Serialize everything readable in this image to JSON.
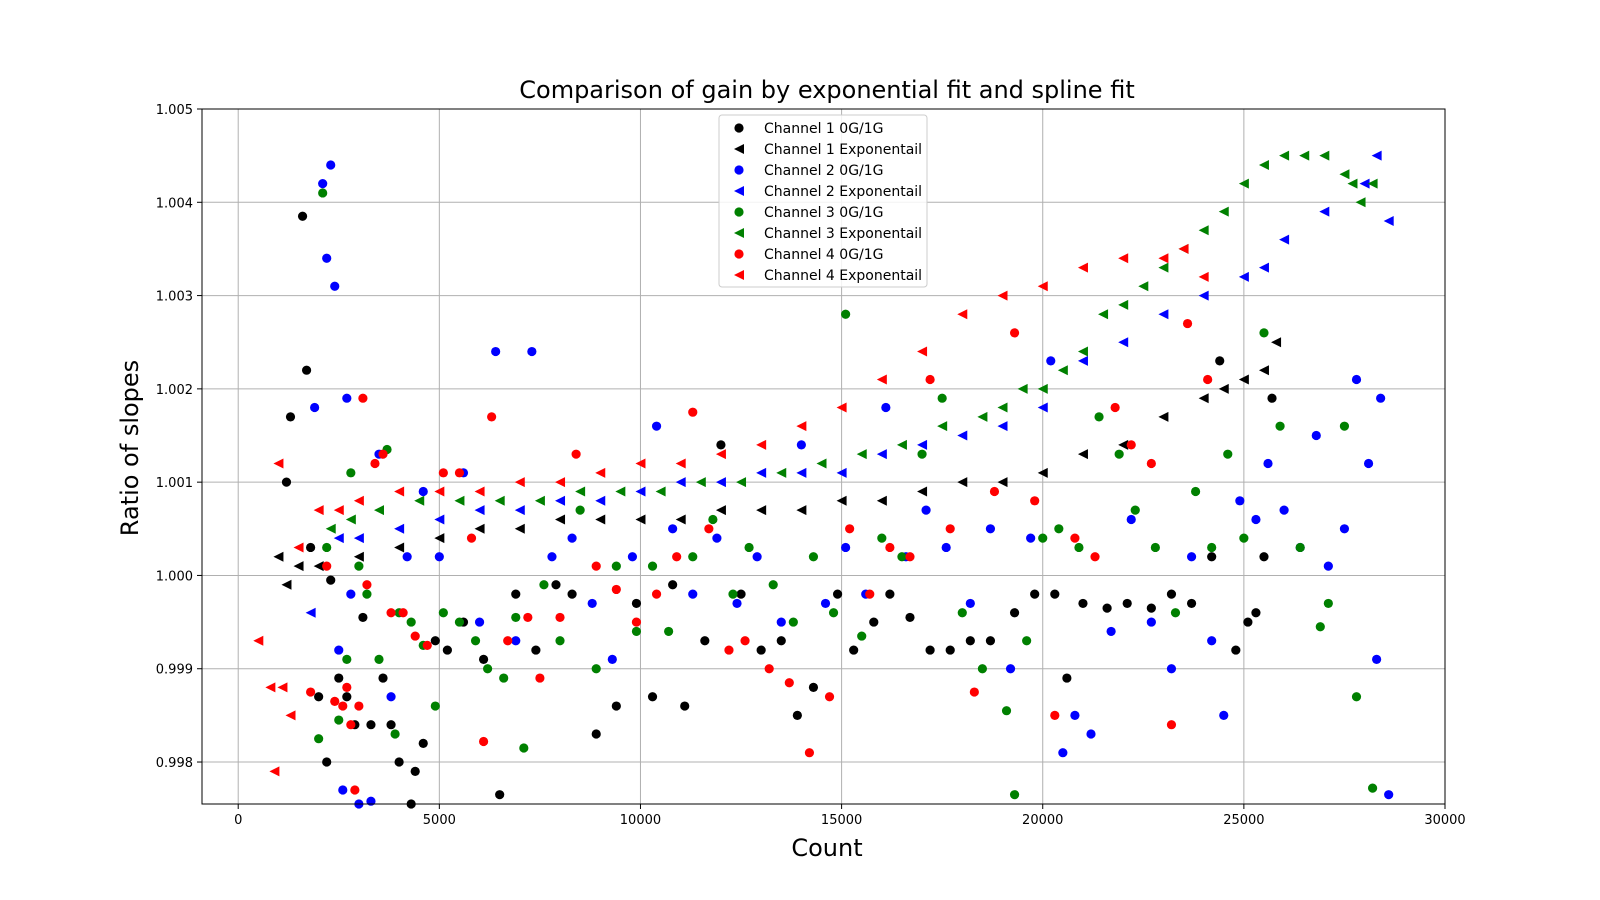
{
  "chart_data": {
    "type": "scatter",
    "title": "Comparison of gain by exponential fit and spline fit",
    "xlabel": "Count",
    "ylabel": "Ratio of slopes",
    "xlim": [
      -900,
      30000
    ],
    "ylim": [
      0.99755,
      1.005
    ],
    "xticks": [
      0,
      5000,
      10000,
      15000,
      20000,
      25000,
      30000
    ],
    "yticks": [
      0.998,
      0.999,
      1.0,
      1.001,
      1.002,
      1.003,
      1.004,
      1.005
    ],
    "ytick_labels": [
      "0.998",
      "0.999",
      "1.000",
      "1.001",
      "1.002",
      "1.003",
      "1.004",
      "1.005"
    ],
    "grid": true,
    "legend_position": "top-center",
    "series": [
      {
        "name": "Channel 1 0G/1G",
        "color": "#000000",
        "marker": "circle",
        "x": [
          1200,
          1300,
          1600,
          1700,
          1800,
          2000,
          2200,
          2300,
          2500,
          2700,
          2900,
          3100,
          3300,
          3600,
          3800,
          4000,
          4300,
          4400,
          4600,
          4900,
          5200,
          5600,
          6100,
          6500,
          6900,
          7400,
          7900,
          8300,
          8900,
          9400,
          9900,
          10300,
          10800,
          11100,
          11600,
          12000,
          12500,
          13000,
          13500,
          13900,
          14300,
          14900,
          15300,
          15800,
          16200,
          16700,
          17200,
          17700,
          18200,
          18700,
          19300,
          19800,
          20300,
          20600,
          21000,
          21600,
          22100,
          22700,
          23200,
          23700,
          24200,
          24400,
          24800,
          25100,
          25300,
          25500,
          25700
        ],
        "y": [
          1.001,
          1.0017,
          1.00385,
          1.0022,
          1.0003,
          0.9987,
          0.998,
          0.99995,
          0.9989,
          0.9987,
          0.9984,
          0.99955,
          0.9984,
          0.9989,
          0.9984,
          0.998,
          0.99755,
          0.9979,
          0.9982,
          0.9993,
          0.9992,
          0.9995,
          0.9991,
          0.99765,
          0.9998,
          0.9992,
          0.9999,
          0.9998,
          0.9983,
          0.9986,
          0.9997,
          0.9987,
          0.9999,
          0.9986,
          0.9993,
          1.0014,
          0.9998,
          0.9992,
          0.9993,
          0.9985,
          0.9988,
          0.9998,
          0.9992,
          0.9995,
          0.9998,
          0.99955,
          0.9992,
          0.9992,
          0.9993,
          0.9993,
          0.9996,
          0.9998,
          0.9998,
          0.9989,
          0.9997,
          0.99965,
          0.9997,
          0.99965,
          0.9998,
          0.9997,
          1.0002,
          1.0023,
          0.9992,
          0.9995,
          0.9996,
          1.0002,
          1.0019
        ]
      },
      {
        "name": "Channel 1 Exponentail",
        "color": "#000000",
        "marker": "triangle-left",
        "x": [
          1000,
          1200,
          1500,
          2000,
          3000,
          4000,
          5000,
          6000,
          7000,
          8000,
          9000,
          10000,
          11000,
          12000,
          13000,
          14000,
          15000,
          16000,
          17000,
          18000,
          19000,
          20000,
          21000,
          22000,
          23000,
          24000,
          24500,
          25000,
          25500,
          25800
        ],
        "y": [
          1.0002,
          0.9999,
          1.0001,
          1.0001,
          1.0002,
          1.0003,
          1.0004,
          1.0005,
          1.0005,
          1.0006,
          1.0006,
          1.0006,
          1.0006,
          1.0007,
          1.0007,
          1.0007,
          1.0008,
          1.0008,
          1.0009,
          1.001,
          1.001,
          1.0011,
          1.0013,
          1.0014,
          1.0017,
          1.0019,
          1.002,
          1.0021,
          1.0022,
          1.0025
        ]
      },
      {
        "name": "Channel 2 0G/1G",
        "color": "#0000ff",
        "marker": "circle",
        "x": [
          1900,
          2100,
          2200,
          2300,
          2400,
          2500,
          2600,
          2700,
          2800,
          3000,
          3300,
          3500,
          3800,
          4200,
          4600,
          5000,
          5600,
          6000,
          6400,
          6900,
          7300,
          7800,
          8300,
          8800,
          9300,
          9800,
          10400,
          10800,
          11300,
          11900,
          12400,
          12900,
          13500,
          14000,
          14600,
          15100,
          15600,
          16100,
          16600,
          17100,
          17600,
          18200,
          18700,
          19200,
          19700,
          20200,
          20500,
          20800,
          21200,
          21700,
          22200,
          22700,
          23200,
          23700,
          24200,
          24500,
          24900,
          25300,
          25600,
          26000,
          26400,
          26800,
          27100,
          27500,
          27800,
          28100,
          28300,
          28400,
          28600
        ],
        "y": [
          1.0018,
          1.0042,
          1.0034,
          1.0044,
          1.0031,
          0.9992,
          0.9977,
          1.0019,
          0.9998,
          0.99755,
          0.99758,
          1.0013,
          0.9987,
          1.0002,
          1.0009,
          1.0002,
          1.0011,
          0.9995,
          1.0024,
          0.9993,
          1.0024,
          1.0002,
          1.0004,
          0.9997,
          0.9991,
          1.0002,
          1.0016,
          1.0005,
          0.9998,
          1.0004,
          0.9997,
          1.0002,
          0.9995,
          1.0014,
          0.9997,
          1.0003,
          0.9998,
          1.0018,
          1.0002,
          1.0007,
          1.0003,
          0.9997,
          1.0005,
          0.999,
          1.0004,
          1.0023,
          0.9981,
          0.9985,
          0.9983,
          0.9994,
          1.0006,
          0.9995,
          0.999,
          1.0002,
          0.9993,
          0.9985,
          1.0008,
          1.0006,
          1.0012,
          1.0007,
          1.0003,
          1.0015,
          1.0001,
          1.0005,
          1.0021,
          1.0012,
          0.9991,
          1.0019,
          0.99765
        ]
      },
      {
        "name": "Channel 2 Exponentail",
        "color": "#0000ff",
        "marker": "triangle-left",
        "x": [
          1800,
          2500,
          3000,
          4000,
          5000,
          6000,
          7000,
          8000,
          9000,
          10000,
          11000,
          12000,
          13000,
          14000,
          15000,
          16000,
          17000,
          18000,
          19000,
          20000,
          21000,
          22000,
          23000,
          24000,
          25000,
          25500,
          26000,
          27000,
          28000,
          28300,
          28600
        ],
        "y": [
          0.9996,
          1.0004,
          1.0004,
          1.0005,
          1.0006,
          1.0007,
          1.0007,
          1.0008,
          1.0008,
          1.0009,
          1.001,
          1.001,
          1.0011,
          1.0011,
          1.0011,
          1.0013,
          1.0014,
          1.0015,
          1.0016,
          1.0018,
          1.0023,
          1.0025,
          1.0028,
          1.003,
          1.0032,
          1.0033,
          1.0036,
          1.0039,
          1.0042,
          1.0045,
          1.0038
        ]
      },
      {
        "name": "Channel 3 0G/1G",
        "color": "#008000",
        "marker": "circle",
        "x": [
          2000,
          2100,
          2200,
          2500,
          2700,
          2800,
          3000,
          3200,
          3500,
          3700,
          3900,
          4000,
          4300,
          4600,
          4900,
          5100,
          5500,
          5900,
          6200,
          6600,
          6900,
          7100,
          7600,
          8000,
          8500,
          8900,
          9400,
          9900,
          10300,
          10700,
          11300,
          11800,
          12300,
          12700,
          13300,
          13800,
          14300,
          14800,
          15100,
          15500,
          16000,
          16500,
          17000,
          17500,
          18000,
          18500,
          19100,
          19300,
          19600,
          20000,
          20400,
          20900,
          21400,
          21900,
          22300,
          22800,
          23300,
          23800,
          24200,
          24600,
          25000,
          25500,
          25900,
          26400,
          26900,
          27100,
          27500,
          27800,
          28200
        ],
        "y": [
          0.99825,
          1.0041,
          1.0003,
          0.99845,
          0.9991,
          1.0011,
          1.0001,
          0.9998,
          0.9991,
          1.00135,
          0.9983,
          0.9996,
          0.9995,
          0.99925,
          0.9986,
          0.9996,
          0.9995,
          0.9993,
          0.999,
          0.9989,
          0.99955,
          0.99815,
          0.9999,
          0.9993,
          1.0007,
          0.999,
          1.0001,
          0.9994,
          1.0001,
          0.9994,
          1.0002,
          1.0006,
          0.9998,
          1.0003,
          0.9999,
          0.9995,
          1.0002,
          0.9996,
          1.0028,
          0.99935,
          1.0004,
          1.0002,
          1.0013,
          1.0019,
          0.9996,
          0.999,
          0.99855,
          0.99765,
          0.9993,
          1.0004,
          1.0005,
          1.0003,
          1.0017,
          1.0013,
          1.0007,
          1.0003,
          0.9996,
          1.0009,
          1.0003,
          1.0013,
          1.0004,
          1.0026,
          1.0016,
          1.0003,
          0.99945,
          0.9997,
          1.0016,
          0.9987,
          0.99772
        ]
      },
      {
        "name": "Channel 3 Exponentail",
        "color": "#008000",
        "marker": "triangle-left",
        "x": [
          2300,
          2800,
          3500,
          4500,
          5500,
          6500,
          7500,
          8500,
          9500,
          10500,
          11500,
          12500,
          13500,
          14500,
          15500,
          16500,
          17500,
          18500,
          19000,
          19500,
          20000,
          20500,
          21000,
          21500,
          22000,
          22500,
          23000,
          23500,
          24000,
          24500,
          25000,
          25500,
          26000,
          26500,
          27000,
          27500,
          27700,
          27900,
          28200
        ],
        "y": [
          1.0005,
          1.0006,
          1.0007,
          1.0008,
          1.0008,
          1.0008,
          1.0008,
          1.0009,
          1.0009,
          1.0009,
          1.001,
          1.001,
          1.0011,
          1.0012,
          1.0013,
          1.0014,
          1.0016,
          1.0017,
          1.0018,
          1.002,
          1.002,
          1.0022,
          1.0024,
          1.0028,
          1.0029,
          1.0031,
          1.0033,
          1.0035,
          1.0037,
          1.0039,
          1.0042,
          1.0044,
          1.0045,
          1.0045,
          1.0045,
          1.0043,
          1.0042,
          1.004,
          1.0042
        ]
      },
      {
        "name": "Channel 4 0G/1G",
        "color": "#ff0000",
        "marker": "circle",
        "x": [
          1800,
          2200,
          2400,
          2600,
          2700,
          2800,
          2900,
          3000,
          3100,
          3200,
          3400,
          3600,
          3800,
          4100,
          4400,
          4700,
          5100,
          5500,
          5800,
          6100,
          6300,
          6700,
          7200,
          7500,
          8000,
          8400,
          8900,
          9400,
          9900,
          10400,
          10900,
          11300,
          11700,
          12200,
          12600,
          13200,
          13700,
          14200,
          14700,
          15200,
          15700,
          16200,
          16700,
          17200,
          17700,
          18300,
          18800,
          19300,
          19800,
          20300,
          20800,
          21300,
          21800,
          22200,
          22700,
          23200,
          23600,
          24100
        ],
        "y": [
          0.99875,
          1.0001,
          0.99865,
          0.9986,
          0.9988,
          0.9984,
          0.9977,
          0.9986,
          1.0019,
          0.9999,
          1.0012,
          1.0013,
          0.9996,
          0.9996,
          0.99935,
          0.99925,
          1.0011,
          1.0011,
          1.0004,
          0.99822,
          1.0017,
          0.9993,
          0.99955,
          0.9989,
          0.99955,
          1.0013,
          1.0001,
          0.99985,
          0.9995,
          0.9998,
          1.0002,
          1.00175,
          1.0005,
          0.9992,
          0.9993,
          0.999,
          0.99885,
          0.9981,
          0.9987,
          1.0005,
          0.9998,
          1.0003,
          1.0002,
          1.0021,
          1.0005,
          0.99875,
          1.0009,
          1.0026,
          1.0008,
          0.9985,
          1.0004,
          1.0002,
          1.0018,
          1.0014,
          1.0012,
          0.9984,
          1.0027,
          1.0021
        ]
      },
      {
        "name": "Channel 4 Exponentail",
        "color": "#ff0000",
        "marker": "triangle-left",
        "x": [
          500,
          800,
          900,
          1000,
          1100,
          1300,
          1500,
          2000,
          2500,
          3000,
          4000,
          5000,
          6000,
          7000,
          8000,
          9000,
          10000,
          11000,
          12000,
          13000,
          14000,
          15000,
          16000,
          17000,
          18000,
          19000,
          20000,
          21000,
          22000,
          23000,
          23500,
          24000
        ],
        "y": [
          0.9993,
          0.9988,
          0.9979,
          1.0012,
          0.9988,
          0.9985,
          1.0003,
          1.0007,
          1.0007,
          1.0008,
          1.0009,
          1.0009,
          1.0009,
          1.001,
          1.001,
          1.0011,
          1.0012,
          1.0012,
          1.0013,
          1.0014,
          1.0016,
          1.0018,
          1.0021,
          1.0024,
          1.0028,
          1.003,
          1.0031,
          1.0033,
          1.0034,
          1.0034,
          1.0035,
          1.0032
        ]
      }
    ]
  }
}
